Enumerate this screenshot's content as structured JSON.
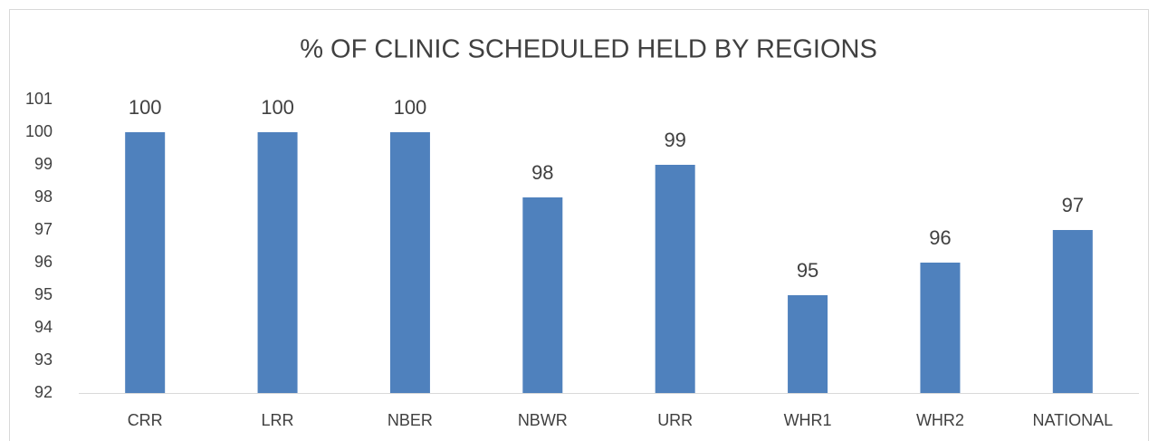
{
  "chart_data": {
    "type": "bar",
    "title": "% OF CLINIC SCHEDULED HELD BY REGIONS",
    "categories": [
      "CRR",
      "LRR",
      "NBER",
      "NBWR",
      "URR",
      "WHR1",
      "WHR2",
      "NATIONAL"
    ],
    "values": [
      100,
      100,
      100,
      98,
      99,
      95,
      96,
      97
    ],
    "color": "#4f81bd",
    "ylim": [
      92,
      101
    ],
    "yticks": [
      92,
      93,
      94,
      95,
      96,
      97,
      98,
      99,
      100,
      101
    ],
    "grid": false
  }
}
